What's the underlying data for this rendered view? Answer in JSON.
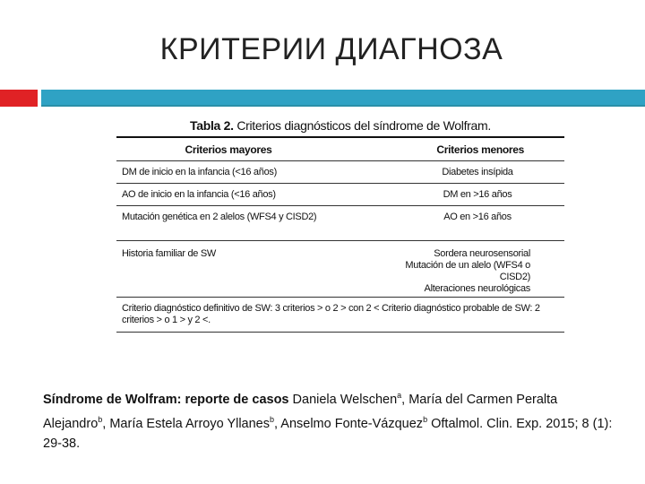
{
  "slide_title": "КРИТЕРИИ ДИАГНОЗА",
  "colors": {
    "accent_red": "#e02225",
    "accent_blue": "#2fa2c4"
  },
  "table": {
    "caption_bold": "Tabla 2.",
    "caption": "Criterios diagnósticos del síndrome de Wolfram.",
    "headers": [
      "Criterios mayores",
      "Criterios menores"
    ],
    "rows": [
      [
        "DM de inicio en la infancia (<16 años)",
        "Diabetes insípida"
      ],
      [
        "AO de inicio en la infancia (<16 años)",
        "DM en >16 años"
      ],
      [
        "Mutación genética en 2 alelos (WFS4 y CISD2)",
        "AO en >16 años"
      ]
    ],
    "group_row": {
      "major": "Historia familiar de SW",
      "minor": [
        "Sordera neurosensorial",
        "Mutación de un alelo (WFS4 o CISD2)",
        "Alteraciones neurológicas"
      ]
    },
    "footer": "Criterio diagnóstico definitivo de SW: 3 criterios > o 2 > con 2 < Criterio diagnóstico probable de SW: 2 criterios > o 1 > y 2 <."
  },
  "citation": {
    "title": "Síndrome de Wolfram: reporte de casos",
    "author1": "Daniela Welschen",
    "sup1": "a",
    "author2": "María del Carmen Peralta Alejandro",
    "sup2": "b",
    "author3": "María Estela Arroyo Yllanes",
    "sup3": "b",
    "author4": "Anselmo Fonte-Vázquez",
    "sup4": "b",
    "journal": "Oftalmol. Clin. Exp. 2015; 8 (1): 29-38."
  }
}
